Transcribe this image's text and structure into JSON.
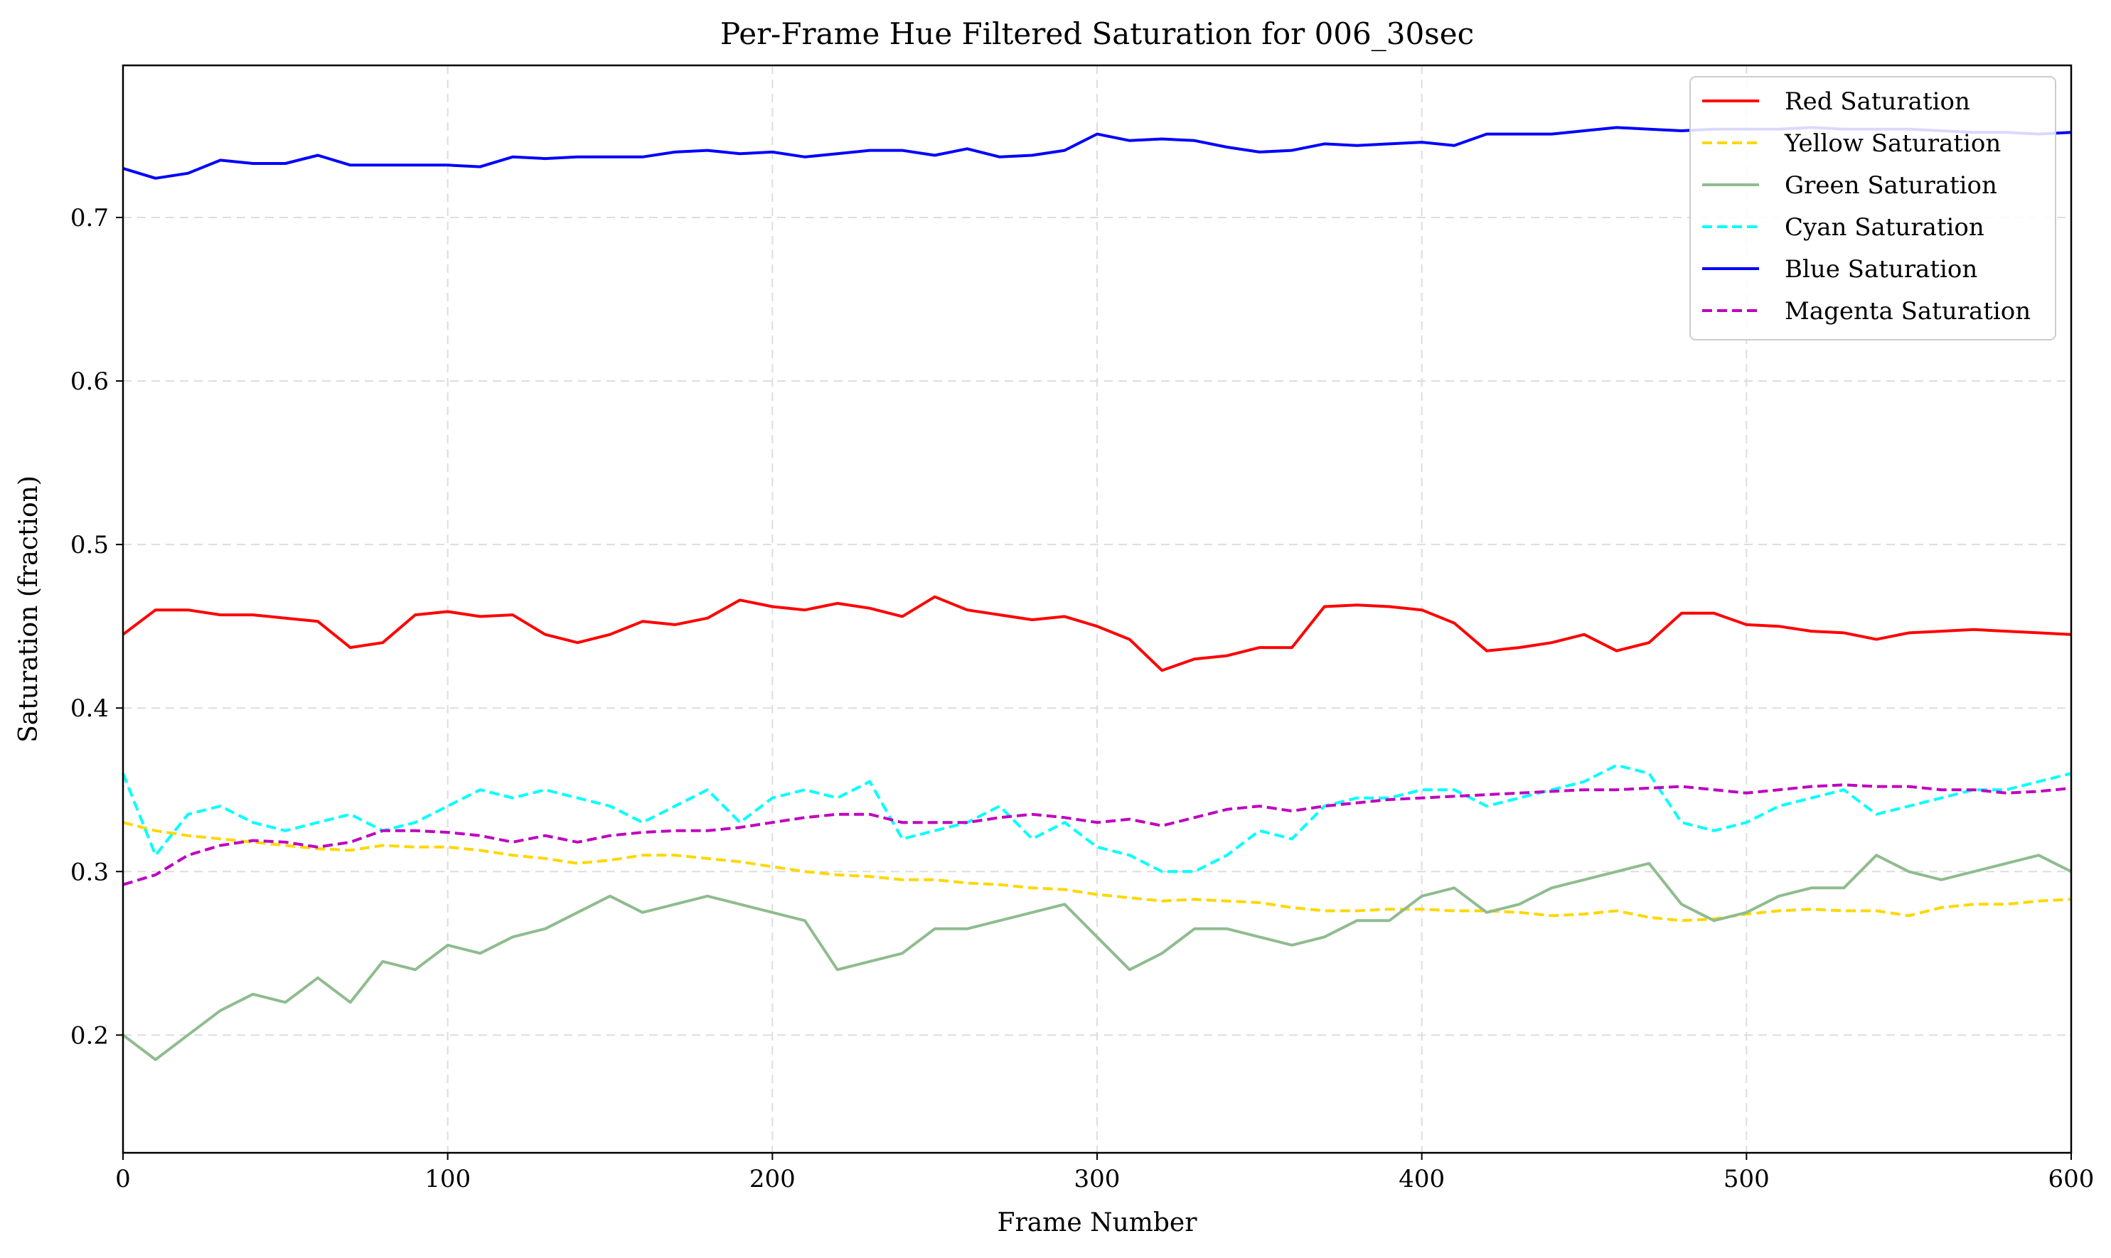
{
  "chart_data": {
    "type": "line",
    "title": "Per-Frame Hue Filtered Saturation for 006_30sec",
    "xlabel": "Frame Number",
    "ylabel": "Saturation (fraction)",
    "xlim": [
      0,
      600
    ],
    "ylim": [
      0.128,
      0.793
    ],
    "xticks": [
      0,
      100,
      200,
      300,
      400,
      500,
      600
    ],
    "yticks": [
      0.2,
      0.3,
      0.4,
      0.5,
      0.6,
      0.7
    ],
    "grid": true,
    "legend_position": "top-right",
    "x_step": 10,
    "series": [
      {
        "name": "Red Saturation",
        "color": "#ff0000",
        "dash": "solid",
        "values": [
          0.445,
          0.46,
          0.46,
          0.457,
          0.457,
          0.455,
          0.453,
          0.437,
          0.44,
          0.457,
          0.459,
          0.456,
          0.457,
          0.445,
          0.44,
          0.445,
          0.453,
          0.451,
          0.455,
          0.466,
          0.462,
          0.46,
          0.464,
          0.461,
          0.456,
          0.468,
          0.46,
          0.457,
          0.454,
          0.456,
          0.45,
          0.442,
          0.423,
          0.43,
          0.432,
          0.437,
          0.437,
          0.462,
          0.463,
          0.462,
          0.46,
          0.452,
          0.435,
          0.437,
          0.44,
          0.445,
          0.435,
          0.44,
          0.458,
          0.458,
          0.451,
          0.45,
          0.447,
          0.446,
          0.442,
          0.446,
          0.447,
          0.448,
          0.447,
          0.446,
          0.445
        ]
      },
      {
        "name": "Yellow Saturation",
        "color": "#ffd700",
        "dash": "dashed",
        "values": [
          0.33,
          0.325,
          0.322,
          0.32,
          0.318,
          0.316,
          0.314,
          0.313,
          0.316,
          0.315,
          0.315,
          0.313,
          0.31,
          0.308,
          0.305,
          0.307,
          0.31,
          0.31,
          0.308,
          0.306,
          0.303,
          0.3,
          0.298,
          0.297,
          0.295,
          0.295,
          0.293,
          0.292,
          0.29,
          0.289,
          0.286,
          0.284,
          0.282,
          0.283,
          0.282,
          0.281,
          0.278,
          0.276,
          0.276,
          0.277,
          0.277,
          0.276,
          0.276,
          0.275,
          0.273,
          0.274,
          0.276,
          0.272,
          0.27,
          0.271,
          0.274,
          0.276,
          0.277,
          0.276,
          0.276,
          0.273,
          0.278,
          0.28,
          0.28,
          0.282,
          0.283
        ]
      },
      {
        "name": "Green Saturation",
        "color": "#8fbc8f",
        "dash": "solid",
        "values": [
          0.2,
          0.185,
          0.2,
          0.215,
          0.225,
          0.22,
          0.235,
          0.22,
          0.245,
          0.24,
          0.255,
          0.25,
          0.26,
          0.265,
          0.275,
          0.285,
          0.275,
          0.28,
          0.285,
          0.28,
          0.275,
          0.27,
          0.24,
          0.245,
          0.25,
          0.265,
          0.265,
          0.27,
          0.275,
          0.28,
          0.26,
          0.24,
          0.25,
          0.265,
          0.265,
          0.26,
          0.255,
          0.26,
          0.27,
          0.27,
          0.285,
          0.29,
          0.275,
          0.28,
          0.29,
          0.295,
          0.3,
          0.305,
          0.28,
          0.27,
          0.275,
          0.285,
          0.29,
          0.29,
          0.31,
          0.3,
          0.295,
          0.3,
          0.305,
          0.31,
          0.3
        ]
      },
      {
        "name": "Cyan Saturation",
        "color": "#00ffff",
        "dash": "dashed",
        "values": [
          0.36,
          0.31,
          0.335,
          0.34,
          0.33,
          0.325,
          0.33,
          0.335,
          0.325,
          0.33,
          0.34,
          0.35,
          0.345,
          0.35,
          0.345,
          0.34,
          0.33,
          0.34,
          0.35,
          0.33,
          0.345,
          0.35,
          0.345,
          0.355,
          0.32,
          0.325,
          0.33,
          0.34,
          0.32,
          0.33,
          0.315,
          0.31,
          0.3,
          0.3,
          0.31,
          0.325,
          0.32,
          0.34,
          0.345,
          0.345,
          0.35,
          0.35,
          0.34,
          0.345,
          0.35,
          0.355,
          0.365,
          0.36,
          0.33,
          0.325,
          0.33,
          0.34,
          0.345,
          0.35,
          0.335,
          0.34,
          0.345,
          0.35,
          0.35,
          0.355,
          0.36
        ]
      },
      {
        "name": "Blue Saturation",
        "color": "#0000ff",
        "dash": "solid",
        "values": [
          0.73,
          0.724,
          0.727,
          0.735,
          0.733,
          0.733,
          0.738,
          0.732,
          0.732,
          0.732,
          0.732,
          0.731,
          0.737,
          0.736,
          0.737,
          0.737,
          0.737,
          0.74,
          0.741,
          0.739,
          0.74,
          0.737,
          0.739,
          0.741,
          0.741,
          0.738,
          0.742,
          0.737,
          0.738,
          0.741,
          0.751,
          0.747,
          0.748,
          0.747,
          0.743,
          0.74,
          0.741,
          0.745,
          0.744,
          0.745,
          0.746,
          0.744,
          0.751,
          0.751,
          0.751,
          0.753,
          0.755,
          0.754,
          0.753,
          0.754,
          0.754,
          0.754,
          0.755,
          0.754,
          0.754,
          0.754,
          0.753,
          0.752,
          0.752,
          0.751,
          0.752
        ]
      },
      {
        "name": "Magenta Saturation",
        "color": "#bf00bf",
        "dash": "dashed",
        "values": [
          0.292,
          0.298,
          0.31,
          0.316,
          0.319,
          0.318,
          0.315,
          0.318,
          0.325,
          0.325,
          0.324,
          0.322,
          0.318,
          0.322,
          0.318,
          0.322,
          0.324,
          0.325,
          0.325,
          0.327,
          0.33,
          0.333,
          0.335,
          0.335,
          0.33,
          0.33,
          0.33,
          0.333,
          0.335,
          0.333,
          0.33,
          0.332,
          0.328,
          0.333,
          0.338,
          0.34,
          0.337,
          0.34,
          0.342,
          0.344,
          0.345,
          0.346,
          0.347,
          0.348,
          0.349,
          0.35,
          0.35,
          0.351,
          0.352,
          0.35,
          0.348,
          0.35,
          0.352,
          0.353,
          0.352,
          0.352,
          0.35,
          0.35,
          0.348,
          0.349,
          0.351
        ]
      }
    ]
  }
}
